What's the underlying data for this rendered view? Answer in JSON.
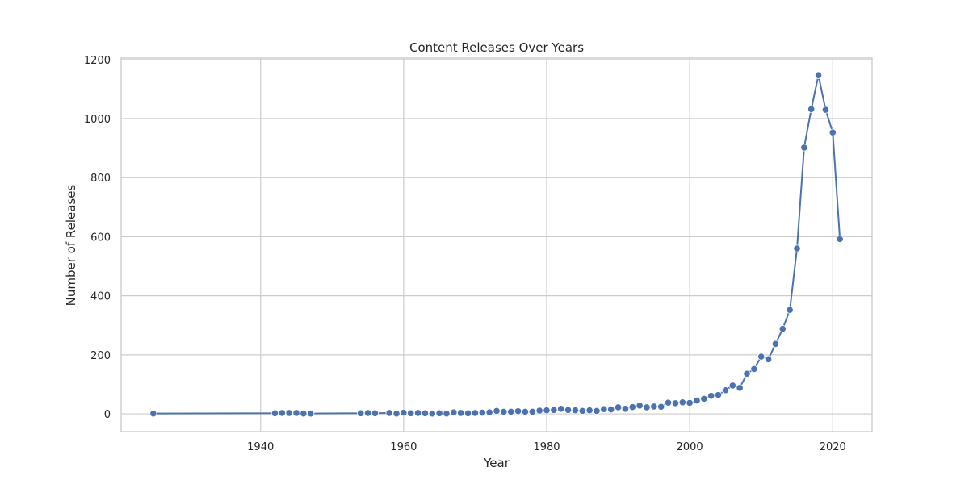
{
  "chart_data": {
    "type": "line",
    "title": "Content Releases Over Years",
    "xlabel": "Year",
    "ylabel": "Number of Releases",
    "xlim": [
      1920.5,
      2025.5
    ],
    "ylim": [
      -60,
      1205
    ],
    "xticks": [
      1940,
      1960,
      1980,
      2000,
      2020
    ],
    "yticks": [
      0,
      200,
      400,
      600,
      800,
      1000,
      1200
    ],
    "grid": true,
    "colors": {
      "line": "#4c72b0",
      "marker": "#4c72b0",
      "marker_edge": "#ffffff",
      "grid": "#cccccc",
      "text": "#262626"
    },
    "series": [
      {
        "x": [
          1925,
          1942,
          1943,
          1944,
          1945,
          1946,
          1947,
          1954,
          1955,
          1956,
          1958,
          1959,
          1960,
          1961,
          1962,
          1963,
          1964,
          1965,
          1966,
          1967,
          1968,
          1969,
          1970,
          1971,
          1972,
          1973,
          1974,
          1975,
          1976,
          1977,
          1978,
          1979,
          1980,
          1981,
          1982,
          1983,
          1984,
          1985,
          1986,
          1987,
          1988,
          1989,
          1990,
          1991,
          1992,
          1993,
          1994,
          1995,
          1996,
          1997,
          1998,
          1999,
          2000,
          2001,
          2002,
          2003,
          2004,
          2005,
          2006,
          2007,
          2008,
          2009,
          2010,
          2011,
          2012,
          2013,
          2014,
          2015,
          2016,
          2017,
          2018,
          2019,
          2020,
          2021
        ],
        "values": [
          1,
          2,
          3,
          3,
          3,
          1,
          1,
          2,
          3,
          2,
          3,
          1,
          4,
          2,
          3,
          2,
          1,
          2,
          1,
          5,
          3,
          2,
          3,
          4,
          5,
          10,
          7,
          7,
          9,
          7,
          7,
          11,
          12,
          13,
          17,
          13,
          12,
          10,
          12,
          10,
          16,
          15,
          22,
          17,
          23,
          28,
          22,
          25,
          24,
          38,
          36,
          39,
          37,
          45,
          51,
          61,
          64,
          80,
          96,
          88,
          136,
          152,
          194,
          185,
          237,
          288,
          352,
          560,
          902,
          1032,
          1147,
          1030,
          953,
          592
        ]
      }
    ]
  }
}
